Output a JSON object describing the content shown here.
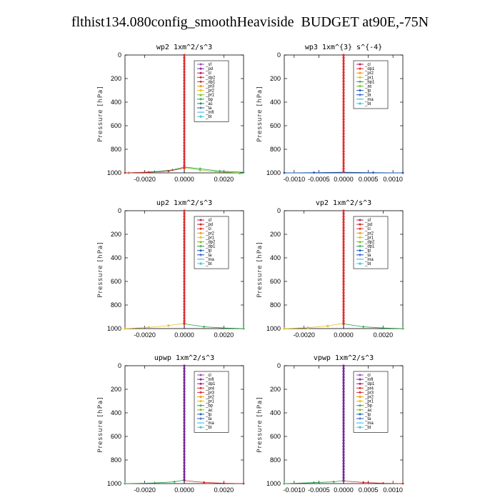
{
  "page": {
    "title": "flthist134.080config_smoothHeaviside  BUDGET at90E,-75N"
  },
  "chart_data": [
    {
      "type": "line",
      "title": "wp2  1xm^2/s^3",
      "xlabel": "",
      "ylabel": "Pressure [hPa]",
      "xlim": [
        -0.003,
        0.003
      ],
      "ylim": [
        1000,
        0
      ],
      "xticks": [
        -0.002,
        0.0,
        0.002
      ],
      "xtick_labels": [
        "-0.0020",
        "0.0000",
        "0.0020"
      ],
      "yticks": [
        0,
        200,
        400,
        600,
        800,
        1000
      ],
      "legend_position": "top-right",
      "grid": false,
      "series": [
        {
          "name": "_sf",
          "color": "#9a4fb8",
          "marker": "circle"
        },
        {
          "name": "_pd",
          "color": "#7a2a9a",
          "marker": "circle"
        },
        {
          "name": "_cl",
          "color": "#c0186a",
          "marker": "circle"
        },
        {
          "name": "_dp2",
          "color": "#d62020",
          "marker": "diamond"
        },
        {
          "name": "_dp1",
          "color": "#e03030",
          "marker": "circle"
        },
        {
          "name": "_pr3",
          "color": "#f0a020",
          "marker": "star"
        },
        {
          "name": "_pr2",
          "color": "#e8c020",
          "marker": "star"
        },
        {
          "name": "_pr1",
          "color": "#80c020",
          "marker": "triangle"
        },
        {
          "name": "_bp",
          "color": "#20a040",
          "marker": "plus"
        },
        {
          "name": "_ac",
          "color": "#209060",
          "marker": "circle"
        },
        {
          "name": "_ta",
          "color": "#2050c0",
          "marker": "plus"
        },
        {
          "name": "_mfl",
          "color": "#40b0e0",
          "marker": "line"
        },
        {
          "name": "_bt",
          "color": "#30d0e0",
          "marker": "star"
        }
      ],
      "profile_series": "_dp1",
      "profile": {
        "x": [
          0,
          0,
          0,
          0,
          0,
          0,
          0,
          0,
          0,
          0,
          0
        ],
        "y": [
          0,
          100,
          200,
          300,
          400,
          500,
          600,
          700,
          800,
          900,
          960
        ]
      },
      "surface_spread": [
        {
          "series": "_bp",
          "x": [
            -0.0028,
            -0.0015,
            -0.0006,
            0.0,
            0.0008,
            0.0018,
            0.003
          ],
          "y": [
            1000,
            990,
            975,
            950,
            965,
            985,
            995
          ]
        },
        {
          "series": "_dp2",
          "x": [
            -0.003,
            -0.0018,
            -0.0008,
            0.0
          ],
          "y": [
            1000,
            995,
            985,
            960
          ]
        },
        {
          "series": "_pr1",
          "x": [
            0.0,
            0.0008,
            0.0016,
            0.0028
          ],
          "y": [
            955,
            975,
            990,
            1000
          ]
        }
      ]
    },
    {
      "type": "line",
      "title": "wp3  1xm^{3} s^{-4}",
      "xlabel": "",
      "ylabel": "Pressure [hPa]",
      "xlim": [
        -0.0012,
        0.0012
      ],
      "ylim": [
        1000,
        0
      ],
      "xticks": [
        -0.001,
        -0.0005,
        0.0,
        0.0005,
        0.001
      ],
      "xtick_labels": [
        "-0.0010",
        "-0.0005",
        "0.0000",
        "0.0005",
        "0.0010"
      ],
      "yticks": [
        0,
        200,
        400,
        600,
        800,
        1000
      ],
      "legend_position": "top-right",
      "grid": false,
      "series": [
        {
          "name": "_cl",
          "color": "#c0186a",
          "marker": "circle"
        },
        {
          "name": "_dp1",
          "color": "#e03030",
          "marker": "circle"
        },
        {
          "name": "_pr2",
          "color": "#f0a020",
          "marker": "star"
        },
        {
          "name": "_pr1",
          "color": "#e8c020",
          "marker": "star"
        },
        {
          "name": "_bp1",
          "color": "#20a040",
          "marker": "plus"
        },
        {
          "name": "_ac",
          "color": "#80c020",
          "marker": "circle"
        },
        {
          "name": "_tp",
          "color": "#2060c0",
          "marker": "circle"
        },
        {
          "name": "_ta",
          "color": "#2050c0",
          "marker": "plus"
        },
        {
          "name": "_ma",
          "color": "#40b0e0",
          "marker": "line"
        },
        {
          "name": "_bt",
          "color": "#30d0e0",
          "marker": "star"
        }
      ],
      "profile_series": "_dp1",
      "profile": {
        "x": [
          0,
          0,
          0,
          0,
          0,
          0,
          0,
          0,
          0,
          0,
          0
        ],
        "y": [
          0,
          100,
          200,
          300,
          400,
          500,
          600,
          700,
          800,
          900,
          990
        ]
      },
      "surface_spread": [
        {
          "series": "_tp",
          "x": [
            -0.0012,
            -0.0006,
            0.0,
            0.0006,
            0.0012
          ],
          "y": [
            1000,
            998,
            995,
            998,
            1000
          ]
        }
      ]
    },
    {
      "type": "line",
      "title": "up2  1xm^2/s^3",
      "xlabel": "",
      "ylabel": "Pressure [hPa]",
      "xlim": [
        -0.003,
        0.003
      ],
      "ylim": [
        1000,
        0
      ],
      "xticks": [
        -0.002,
        0.0,
        0.002
      ],
      "xtick_labels": [
        "-0.0020",
        "0.0000",
        "0.0020"
      ],
      "yticks": [
        0,
        200,
        400,
        600,
        800,
        1000
      ],
      "legend_position": "top-right",
      "grid": false,
      "series": [
        {
          "name": "_sf",
          "color": "#c0186a",
          "marker": "circle"
        },
        {
          "name": "_pd",
          "color": "#d62020",
          "marker": "circle"
        },
        {
          "name": "_cl",
          "color": "#e03030",
          "marker": "circle"
        },
        {
          "name": "_pr2",
          "color": "#f0a020",
          "marker": "star"
        },
        {
          "name": "_pr1",
          "color": "#e8c020",
          "marker": "star"
        },
        {
          "name": "_dp2",
          "color": "#80c020",
          "marker": "triangle"
        },
        {
          "name": "_dp1",
          "color": "#20a040",
          "marker": "plus"
        },
        {
          "name": "_tp",
          "color": "#2060c0",
          "marker": "circle"
        },
        {
          "name": "_ta",
          "color": "#2050c0",
          "marker": "plus"
        },
        {
          "name": "_ma",
          "color": "#40b0e0",
          "marker": "line"
        },
        {
          "name": "_bt",
          "color": "#30d0e0",
          "marker": "star"
        }
      ],
      "profile_series": "_cl",
      "profile": {
        "x": [
          0,
          0,
          0,
          0,
          0,
          0,
          0,
          0,
          0,
          0,
          0
        ],
        "y": [
          0,
          100,
          200,
          300,
          400,
          500,
          600,
          700,
          800,
          900,
          960
        ]
      },
      "surface_spread": [
        {
          "series": "_pr1",
          "x": [
            -0.003,
            -0.0018,
            -0.0008,
            0.0
          ],
          "y": [
            1000,
            990,
            975,
            955
          ]
        },
        {
          "series": "_dp1",
          "x": [
            0.0,
            0.001,
            0.002,
            0.003
          ],
          "y": [
            960,
            985,
            995,
            1000
          ]
        }
      ]
    },
    {
      "type": "line",
      "title": "vp2  1xm^2/s^3",
      "xlabel": "",
      "ylabel": "Pressure [hPa]",
      "xlim": [
        -0.003,
        0.003
      ],
      "ylim": [
        1000,
        0
      ],
      "xticks": [
        -0.002,
        0.0,
        0.002
      ],
      "xtick_labels": [
        "-0.0020",
        "0.0000",
        "0.0020"
      ],
      "yticks": [
        0,
        200,
        400,
        600,
        800,
        1000
      ],
      "legend_position": "top-right",
      "grid": false,
      "series": [
        {
          "name": "_sf",
          "color": "#c0186a",
          "marker": "circle"
        },
        {
          "name": "_pd",
          "color": "#d62020",
          "marker": "circle"
        },
        {
          "name": "_cl",
          "color": "#e03030",
          "marker": "circle"
        },
        {
          "name": "_pr2",
          "color": "#f0a020",
          "marker": "star"
        },
        {
          "name": "_pr1",
          "color": "#e8c020",
          "marker": "star"
        },
        {
          "name": "_dp2",
          "color": "#80c020",
          "marker": "triangle"
        },
        {
          "name": "_dp1",
          "color": "#20a040",
          "marker": "plus"
        },
        {
          "name": "_tp",
          "color": "#2060c0",
          "marker": "circle"
        },
        {
          "name": "_ta",
          "color": "#2050c0",
          "marker": "plus"
        },
        {
          "name": "_ma",
          "color": "#40b0e0",
          "marker": "line"
        },
        {
          "name": "_bt",
          "color": "#30d0e0",
          "marker": "star"
        }
      ],
      "profile_series": "_cl",
      "profile": {
        "x": [
          0,
          0,
          0,
          0,
          0,
          0,
          0,
          0,
          0,
          0,
          0
        ],
        "y": [
          0,
          100,
          200,
          300,
          400,
          500,
          600,
          700,
          800,
          900,
          960
        ]
      },
      "surface_spread": [
        {
          "series": "_pr1",
          "x": [
            -0.003,
            -0.0018,
            -0.0008,
            0.0
          ],
          "y": [
            1000,
            992,
            978,
            955
          ]
        },
        {
          "series": "_dp1",
          "x": [
            0.0,
            0.001,
            0.002,
            0.003
          ],
          "y": [
            960,
            985,
            995,
            1000
          ]
        }
      ]
    },
    {
      "type": "line",
      "title": "upwp  1xm^2/s^3",
      "xlabel": "",
      "ylabel": "Pressure [hPa]",
      "xlim": [
        -0.003,
        0.003
      ],
      "ylim": [
        1000,
        0
      ],
      "xticks": [
        -0.002,
        0.0,
        0.002
      ],
      "xtick_labels": [
        "-0.0020",
        "0.0000",
        "0.0020"
      ],
      "yticks": [
        0,
        200,
        400,
        600,
        800,
        1000
      ],
      "legend_position": "top-right",
      "grid": false,
      "series": [
        {
          "name": "_cl",
          "color": "#9a4fb8",
          "marker": "circle"
        },
        {
          "name": "_mfl",
          "color": "#7a2a9a",
          "marker": "circle"
        },
        {
          "name": "_dp1",
          "color": "#c0186a",
          "marker": "circle"
        },
        {
          "name": "_pr4",
          "color": "#d62020",
          "marker": "diamond"
        },
        {
          "name": "_pr3",
          "color": "#e03030",
          "marker": "circle"
        },
        {
          "name": "_pr2",
          "color": "#f0a020",
          "marker": "star"
        },
        {
          "name": "_pr1",
          "color": "#e8c020",
          "marker": "star"
        },
        {
          "name": "_bp",
          "color": "#20a040",
          "marker": "plus"
        },
        {
          "name": "_ac",
          "color": "#80c020",
          "marker": "circle"
        },
        {
          "name": "_tp",
          "color": "#2060c0",
          "marker": "circle"
        },
        {
          "name": "_ta",
          "color": "#2050c0",
          "marker": "plus"
        },
        {
          "name": "_ma",
          "color": "#40b0e0",
          "marker": "line"
        },
        {
          "name": "_bt",
          "color": "#30d0e0",
          "marker": "star"
        }
      ],
      "profile_series": "_mfl",
      "profile": {
        "x": [
          0,
          0,
          0,
          0,
          0,
          0,
          0,
          0,
          0,
          0,
          0
        ],
        "y": [
          0,
          100,
          200,
          300,
          400,
          500,
          600,
          700,
          800,
          900,
          970
        ]
      },
      "surface_spread": [
        {
          "series": "_bp",
          "x": [
            -0.003,
            -0.0015,
            -0.0005,
            0.0
          ],
          "y": [
            1000,
            995,
            985,
            970
          ]
        },
        {
          "series": "_pr4",
          "x": [
            0.0,
            0.001,
            0.002,
            0.003
          ],
          "y": [
            975,
            990,
            997,
            1000
          ]
        }
      ]
    },
    {
      "type": "line",
      "title": "vpwp  1xm^2/s^3",
      "xlabel": "",
      "ylabel": "Pressure [hPa]",
      "xlim": [
        -0.0012,
        0.0012
      ],
      "ylim": [
        1000,
        0
      ],
      "xticks": [
        -0.001,
        -0.0005,
        0.0,
        0.0005,
        0.001
      ],
      "xtick_labels": [
        "-0.0010",
        "-0.0005",
        "0.0000",
        "0.0005",
        "0.0010"
      ],
      "yticks": [
        0,
        200,
        400,
        600,
        800,
        1000
      ],
      "legend_position": "top-right",
      "grid": false,
      "series": [
        {
          "name": "_cl",
          "color": "#9a4fb8",
          "marker": "circle"
        },
        {
          "name": "_mfl",
          "color": "#7a2a9a",
          "marker": "circle"
        },
        {
          "name": "_dp1",
          "color": "#c0186a",
          "marker": "circle"
        },
        {
          "name": "_pr4",
          "color": "#d62020",
          "marker": "diamond"
        },
        {
          "name": "_pr3",
          "color": "#e03030",
          "marker": "circle"
        },
        {
          "name": "_pr2",
          "color": "#f0a020",
          "marker": "star"
        },
        {
          "name": "_pr1",
          "color": "#e8c020",
          "marker": "star"
        },
        {
          "name": "_bp",
          "color": "#20a040",
          "marker": "plus"
        },
        {
          "name": "_ac",
          "color": "#80c020",
          "marker": "circle"
        },
        {
          "name": "_tp",
          "color": "#2060c0",
          "marker": "circle"
        },
        {
          "name": "_ta",
          "color": "#2050c0",
          "marker": "plus"
        },
        {
          "name": "_ma",
          "color": "#40b0e0",
          "marker": "line"
        },
        {
          "name": "_bt",
          "color": "#30d0e0",
          "marker": "star"
        }
      ],
      "profile_series": "_mfl",
      "profile": {
        "x": [
          0,
          0,
          0,
          0,
          0,
          0,
          0,
          0,
          0,
          0,
          0
        ],
        "y": [
          0,
          100,
          200,
          300,
          400,
          500,
          600,
          700,
          800,
          900,
          975
        ]
      },
      "surface_spread": [
        {
          "series": "_bp",
          "x": [
            -0.0012,
            -0.0006,
            -0.0002,
            0.0
          ],
          "y": [
            1000,
            992,
            985,
            975
          ]
        },
        {
          "series": "_pr4",
          "x": [
            0.0,
            0.0004,
            0.0008,
            0.0012
          ],
          "y": [
            978,
            990,
            997,
            1000
          ]
        }
      ]
    }
  ]
}
